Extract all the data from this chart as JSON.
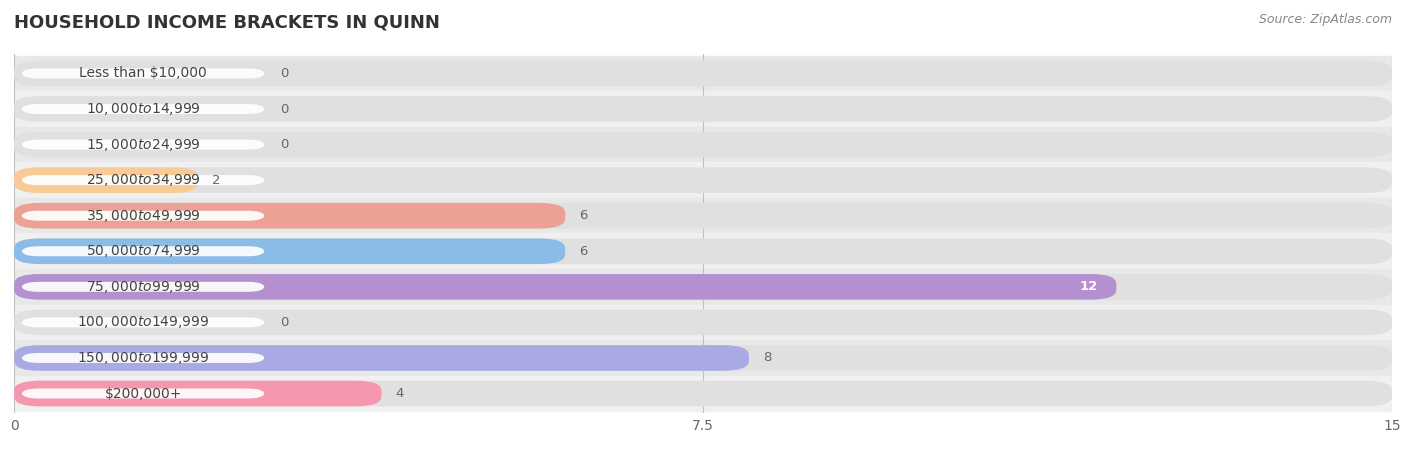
{
  "title": "HOUSEHOLD INCOME BRACKETS IN QUINN",
  "source": "Source: ZipAtlas.com",
  "categories": [
    "Less than $10,000",
    "$10,000 to $14,999",
    "$15,000 to $24,999",
    "$25,000 to $34,999",
    "$35,000 to $49,999",
    "$50,000 to $74,999",
    "$75,000 to $99,999",
    "$100,000 to $149,999",
    "$150,000 to $199,999",
    "$200,000+"
  ],
  "values": [
    0,
    0,
    0,
    2,
    6,
    6,
    12,
    0,
    8,
    4
  ],
  "bar_colors": [
    "#72cfc9",
    "#a9a9e3",
    "#f597ae",
    "#f8ca96",
    "#eda094",
    "#8bbce8",
    "#b590d0",
    "#72cfc9",
    "#a9a9e3",
    "#f597ae"
  ],
  "xlim": [
    0,
    15
  ],
  "xticks": [
    0,
    7.5,
    15
  ],
  "bg_color": "#f0f0f0",
  "row_bg_even": "#e8e8e8",
  "row_bg_odd": "#f0f0f0",
  "bar_track_color": "#e0e0e0",
  "title_fontsize": 13,
  "label_fontsize": 10,
  "value_fontsize": 9.5,
  "source_fontsize": 9
}
